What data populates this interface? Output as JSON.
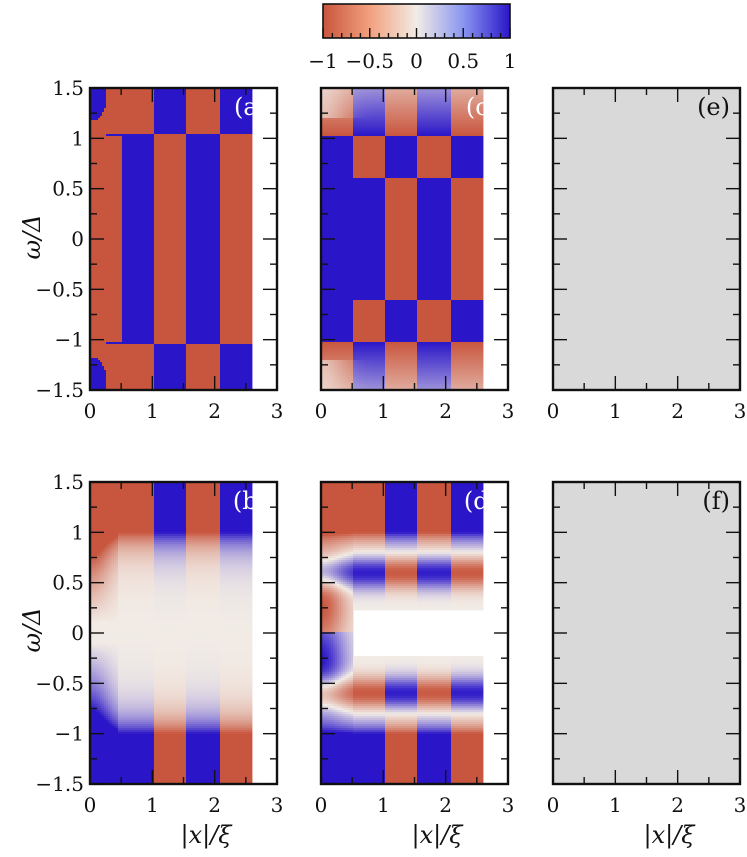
{
  "colorbar": {
    "ticks": [
      -1,
      -0.5,
      0,
      0.5,
      1
    ],
    "tick_labels": [
      "−1",
      "−0.5",
      "0",
      "0.5",
      "1"
    ],
    "range": [
      -1,
      1
    ],
    "colormap": "coolwarm_reversed",
    "colors": {
      "low": "#c8553d",
      "mid": "#f2ece6",
      "high": "#2a16c8"
    }
  },
  "axes": {
    "x_label": "|x|/ξ",
    "y_label": "ω/Δ",
    "x_range": [
      0,
      3
    ],
    "y_range": [
      -1.5,
      1.5
    ],
    "x_ticks": [
      0,
      1,
      2,
      3
    ],
    "x_tick_labels": [
      "0",
      "1",
      "2",
      "3"
    ],
    "y_ticks": [
      -1.5,
      -1,
      -0.5,
      0,
      0.5,
      1,
      1.5
    ],
    "y_tick_labels": [
      "−1.5",
      "−1",
      "−0.5",
      "0",
      "0.5",
      "1",
      "1.5"
    ]
  },
  "panels": [
    {
      "label": "(a)"
    },
    {
      "label": "(c)"
    },
    {
      "label": "(e)"
    },
    {
      "label": "(b)"
    },
    {
      "label": "(d)"
    },
    {
      "label": "(f)"
    }
  ],
  "chart_data": {
    "type": "heatmap",
    "note_panels": [
      "(a)",
      "(c)",
      "(e)",
      "(b)",
      "(d)",
      "(f)"
    ],
    "x_range": [
      0,
      3
    ],
    "y_range": [
      -1.5,
      1.5
    ],
    "color_range": [
      -1,
      1
    ],
    "empty_panel_color": "#d9d9d9"
  }
}
